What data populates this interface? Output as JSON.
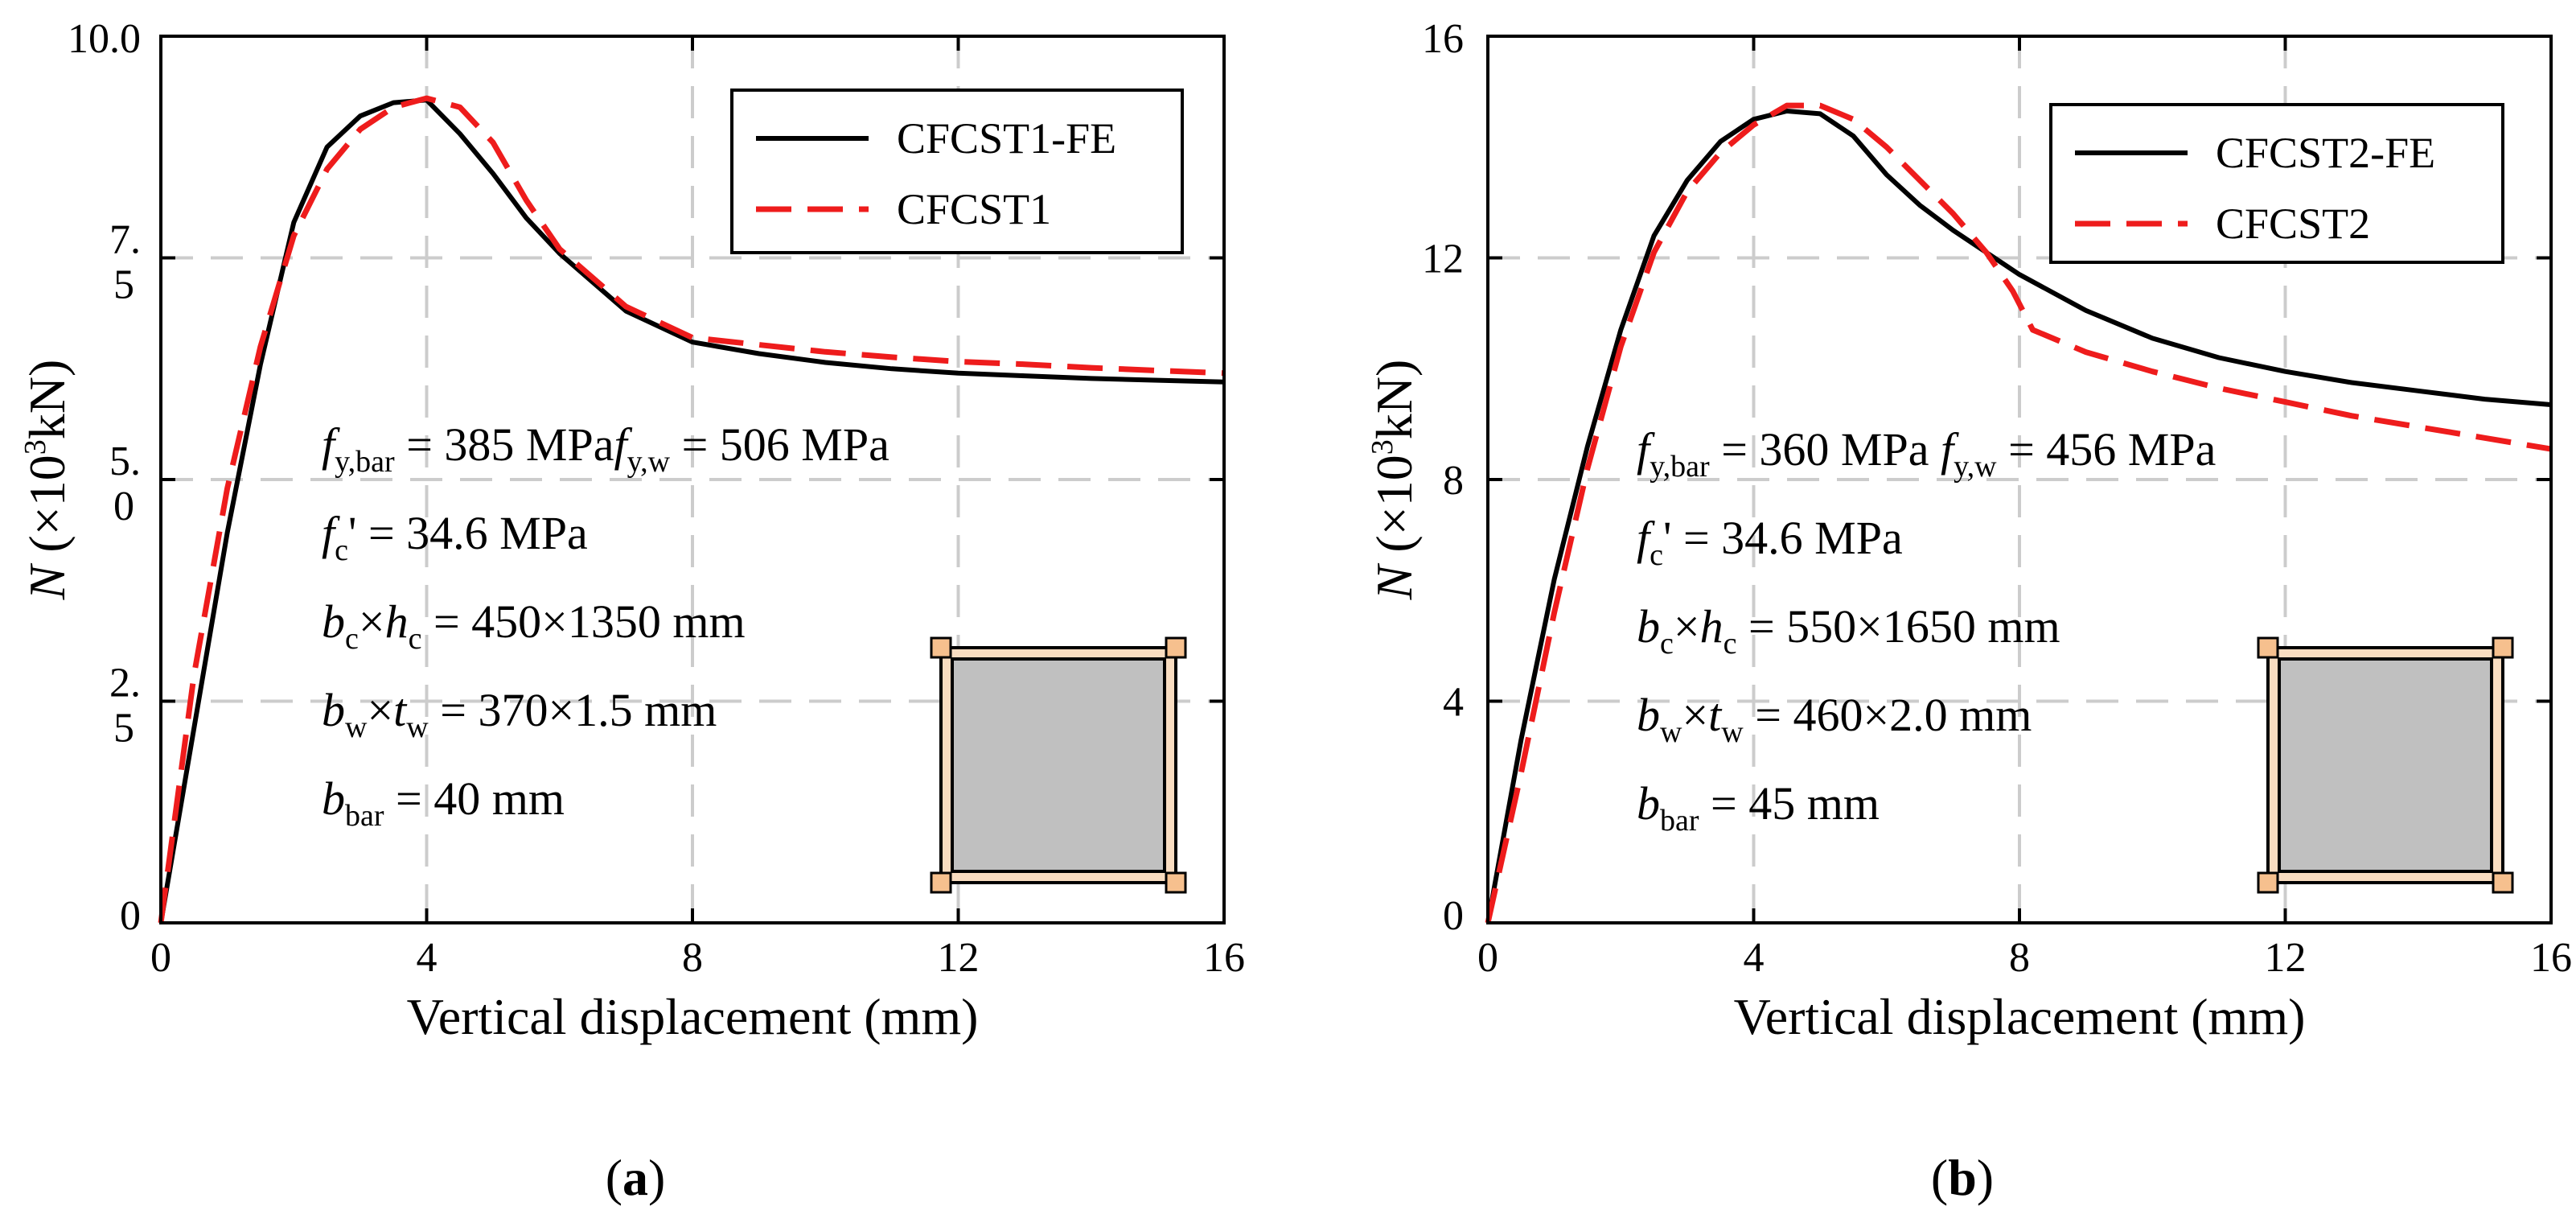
{
  "chart_data": [
    {
      "type": "line",
      "panel": "a",
      "xlabel": "Vertical displacement (mm)",
      "ylabel": {
        "main": "N",
        "pre": "(×10",
        "exp": "3",
        "post": "kN)"
      },
      "xlim": [
        0,
        16
      ],
      "ylim": [
        0,
        10
      ],
      "xticks": [
        0,
        4,
        8,
        12,
        16
      ],
      "xtick_labels": [
        "0",
        "4",
        "8",
        "12",
        "16"
      ],
      "yticks": [
        0,
        2.5,
        5.0,
        7.5,
        10.0
      ],
      "ytick_labels": [
        [
          "0"
        ],
        [
          "2.",
          "5"
        ],
        [
          "5.",
          "0"
        ],
        [
          "7.",
          "5"
        ],
        [
          "10.0"
        ]
      ],
      "grid": true,
      "series": [
        {
          "name": "CFCST1-FE",
          "color": "#000000",
          "style": "solid",
          "x": [
            0,
            0.5,
            1.0,
            1.5,
            2.0,
            2.5,
            3.0,
            3.5,
            4.0,
            4.5,
            5.0,
            5.5,
            6.0,
            7.0,
            8.0,
            9.0,
            10.0,
            11.0,
            12.0,
            13.0,
            14.0,
            15.0,
            16.0
          ],
          "y": [
            0,
            2.2,
            4.4,
            6.3,
            7.9,
            8.75,
            9.1,
            9.25,
            9.28,
            8.9,
            8.45,
            7.95,
            7.55,
            6.9,
            6.55,
            6.42,
            6.32,
            6.25,
            6.2,
            6.17,
            6.14,
            6.12,
            6.1
          ]
        },
        {
          "name": "CFCST1",
          "color": "#ee1c1c",
          "style": "dashed",
          "x": [
            0,
            0.5,
            1.0,
            1.5,
            2.0,
            2.5,
            3.0,
            3.5,
            4.0,
            4.5,
            5.0,
            5.5,
            6.0,
            7.0,
            8.0,
            9.0,
            10.0,
            11.0,
            12.0,
            13.0,
            14.0,
            15.0,
            16.0
          ],
          "y": [
            0,
            2.8,
            4.9,
            6.5,
            7.75,
            8.5,
            8.95,
            9.2,
            9.3,
            9.2,
            8.8,
            8.15,
            7.6,
            6.95,
            6.6,
            6.52,
            6.44,
            6.38,
            6.33,
            6.3,
            6.26,
            6.23,
            6.2
          ]
        }
      ],
      "legend": {
        "position": "top-right",
        "entries": [
          "CFCST1-FE",
          "CFCST1"
        ]
      },
      "annotations": [
        {
          "f": "f",
          "sub1": "y,bar",
          "eq1": " = 385 MPa",
          "f2": "f",
          "sub2": "y,w",
          "eq2": " = 506 MPa"
        },
        {
          "b": "f",
          "sub": "c",
          "rest": "' = 34.6 MPa"
        },
        {
          "b": "b",
          "sub": "c",
          "mid": "×h",
          "sub2": "c",
          "rest": " = 450×1350 mm"
        },
        {
          "b": "b",
          "sub": "w",
          "mid": "×t",
          "sub2": "w",
          "rest": " = 370×1.5 mm"
        },
        {
          "b": "b",
          "sub": "bar",
          "rest": " = 40 mm"
        }
      ],
      "label": "(a)"
    },
    {
      "type": "line",
      "panel": "b",
      "xlabel": "Vertical displacement (mm)",
      "ylabel": {
        "main": "N",
        "pre": "(×10",
        "exp": "3",
        "post": "kN)"
      },
      "xlim": [
        0,
        16
      ],
      "ylim": [
        0,
        16
      ],
      "xticks": [
        0,
        4,
        8,
        12,
        16
      ],
      "xtick_labels": [
        "0",
        "4",
        "8",
        "12",
        "16"
      ],
      "yticks": [
        0,
        4,
        8,
        12,
        16
      ],
      "ytick_labels": [
        [
          "0"
        ],
        [
          "4"
        ],
        [
          "8"
        ],
        [
          "12"
        ],
        [
          "16"
        ]
      ],
      "grid": true,
      "series": [
        {
          "name": "CFCST2-FE",
          "color": "#000000",
          "style": "solid",
          "x": [
            0,
            0.5,
            1.0,
            1.5,
            2.0,
            2.5,
            3.0,
            3.5,
            4.0,
            4.5,
            5.0,
            5.5,
            6.0,
            6.5,
            7.0,
            8.0,
            9.0,
            10.0,
            11.0,
            12.0,
            13.0,
            14.0,
            15.0,
            16.0
          ],
          "y": [
            0,
            3.3,
            6.2,
            8.6,
            10.7,
            12.4,
            13.4,
            14.1,
            14.5,
            14.65,
            14.6,
            14.2,
            13.5,
            12.95,
            12.5,
            11.7,
            11.05,
            10.55,
            10.2,
            9.95,
            9.75,
            9.6,
            9.45,
            9.35
          ]
        },
        {
          "name": "CFCST2",
          "color": "#ee1c1c",
          "style": "dashed",
          "x": [
            0,
            0.5,
            1.0,
            1.5,
            2.0,
            2.5,
            3.0,
            3.5,
            4.0,
            4.5,
            5.0,
            5.5,
            6.0,
            6.5,
            7.0,
            7.5,
            7.9,
            8.2,
            9.0,
            10.0,
            11.0,
            12.0,
            13.0,
            14.0,
            15.0,
            16.0
          ],
          "y": [
            0,
            2.7,
            5.6,
            8.2,
            10.4,
            12.1,
            13.2,
            13.9,
            14.4,
            14.75,
            14.75,
            14.5,
            14.0,
            13.4,
            12.8,
            12.1,
            11.4,
            10.7,
            10.3,
            9.95,
            9.65,
            9.4,
            9.15,
            8.95,
            8.75,
            8.55
          ]
        }
      ],
      "legend": {
        "position": "top-right",
        "entries": [
          "CFCST2-FE",
          "CFCST2"
        ]
      },
      "annotations": [
        {
          "f": "f",
          "sub1": "y,bar",
          "eq1": " = 360 MPa ",
          "f2": "f",
          "sub2": "y,w",
          "eq2": " = 456 MPa"
        },
        {
          "b": "f",
          "sub": "c",
          "rest": "' = 34.6 MPa"
        },
        {
          "b": "b",
          "sub": "c",
          "mid": "×h",
          "sub2": "c",
          "rest": " = 550×1650 mm"
        },
        {
          "b": "b",
          "sub": "w",
          "mid": "×t",
          "sub2": "w",
          "rest": " = 460×2.0 mm"
        },
        {
          "b": "b",
          "sub": "bar",
          "rest": " = 45 mm"
        }
      ],
      "label": "(b)"
    }
  ],
  "colors": {
    "section_outer": "#f8dcc0",
    "section_corner": "#f6c08e",
    "section_core": "#c0c0c0",
    "grid": "#cccccc"
  }
}
